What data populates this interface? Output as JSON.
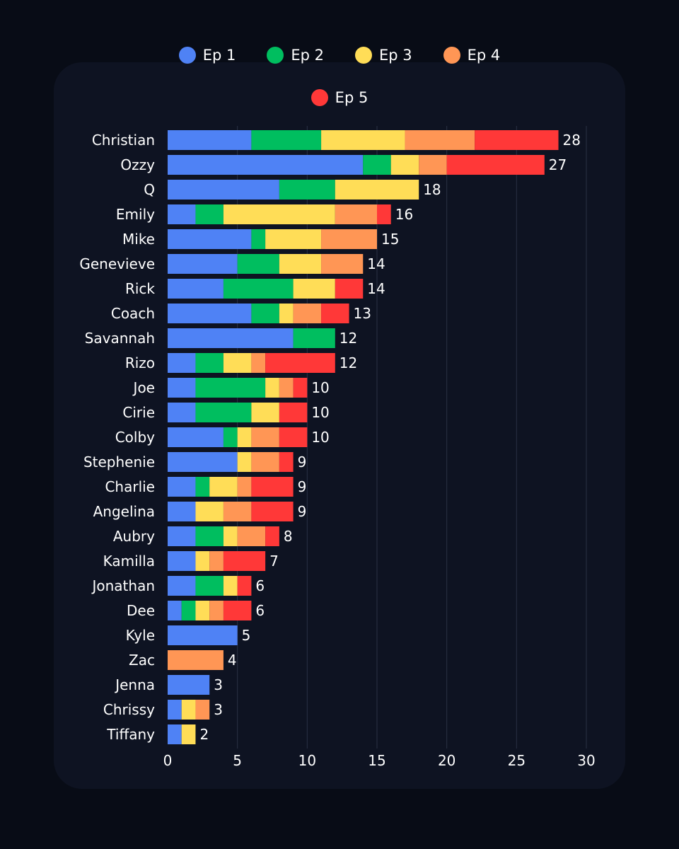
{
  "chart_data": {
    "type": "bar",
    "orientation": "horizontal",
    "stacked": true,
    "title": "",
    "xlabel": "",
    "ylabel": "",
    "xlim": [
      0,
      30
    ],
    "xticks": [
      0,
      5,
      10,
      15,
      20,
      25,
      30
    ],
    "grid": true,
    "legend_position": "top-center",
    "categories": [
      "Christian",
      "Ozzy",
      "Q",
      "Emily",
      "Mike",
      "Genevieve",
      "Rick",
      "Coach",
      "Savannah",
      "Rizo",
      "Joe",
      "Cirie",
      "Colby",
      "Stephenie",
      "Charlie",
      "Angelina",
      "Aubry",
      "Kamilla",
      "Jonathan",
      "Dee",
      "Kyle",
      "Zac",
      "Jenna",
      "Chrissy",
      "Tiffany"
    ],
    "series": [
      {
        "name": "Ep 1",
        "color": "#4f82f5",
        "values": [
          6,
          14,
          8,
          2,
          6,
          5,
          4,
          6,
          9,
          2,
          2,
          2,
          4,
          5,
          2,
          2,
          2,
          2,
          2,
          1,
          5,
          0,
          3,
          1,
          1
        ]
      },
      {
        "name": "Ep 2",
        "color": "#00be5f",
        "values": [
          5,
          2,
          4,
          2,
          1,
          3,
          5,
          2,
          3,
          2,
          5,
          4,
          1,
          0,
          1,
          0,
          2,
          0,
          2,
          1,
          0,
          0,
          0,
          0,
          0
        ]
      },
      {
        "name": "Ep 3",
        "color": "#ffdd57",
        "values": [
          6,
          2,
          6,
          8,
          4,
          3,
          3,
          1,
          0,
          2,
          1,
          2,
          1,
          1,
          2,
          2,
          1,
          1,
          1,
          1,
          0,
          0,
          0,
          1,
          1
        ]
      },
      {
        "name": "Ep 4",
        "color": "#ff9655",
        "values": [
          5,
          2,
          0,
          3,
          4,
          3,
          0,
          2,
          0,
          1,
          1,
          0,
          2,
          2,
          1,
          2,
          2,
          1,
          0,
          1,
          0,
          4,
          0,
          1,
          0
        ]
      },
      {
        "name": "Ep 5",
        "color": "#ff3838",
        "values": [
          6,
          7,
          0,
          1,
          0,
          0,
          2,
          2,
          0,
          5,
          1,
          2,
          2,
          1,
          3,
          3,
          1,
          3,
          1,
          2,
          0,
          0,
          0,
          0,
          0
        ]
      }
    ],
    "totals": [
      28,
      27,
      18,
      16,
      15,
      14,
      14,
      13,
      12,
      12,
      10,
      10,
      10,
      9,
      9,
      9,
      8,
      7,
      6,
      6,
      5,
      4,
      3,
      3,
      2
    ]
  }
}
